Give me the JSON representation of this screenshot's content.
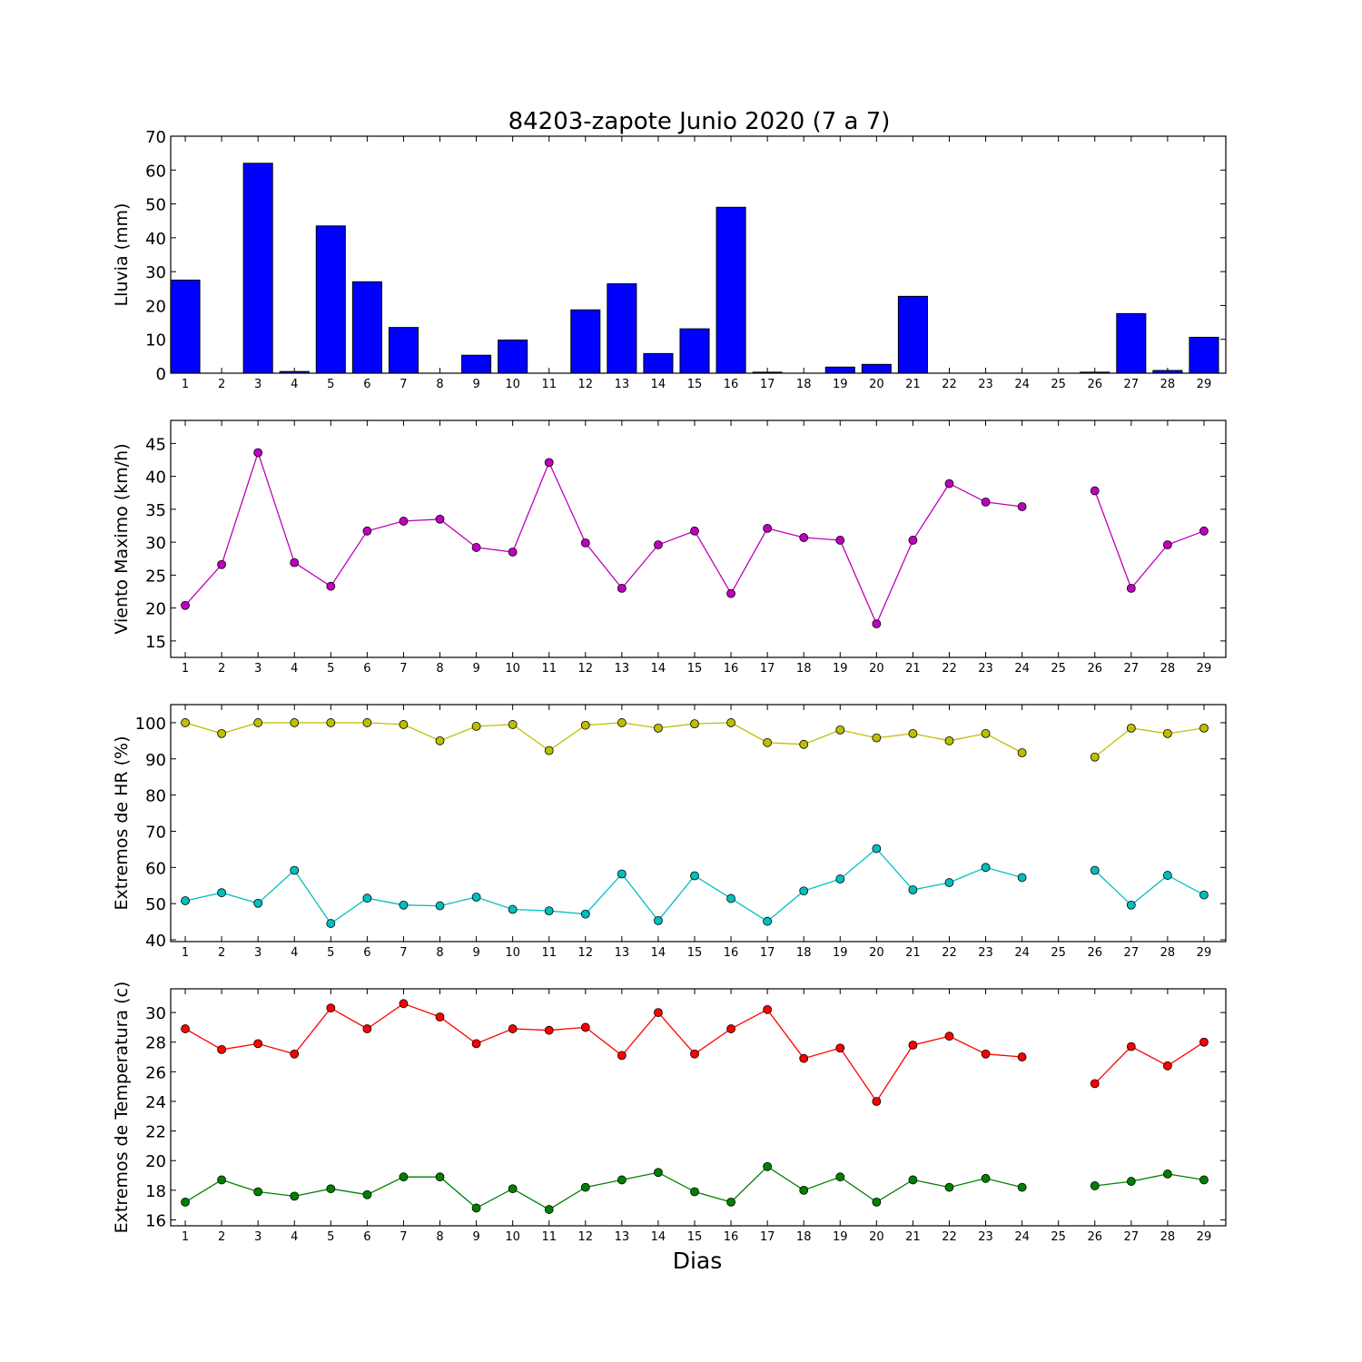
{
  "chart_data": {
    "title": "84203-zapote Junio 2020  (7 a 7)",
    "xlabel": "Dias",
    "days": [
      1,
      2,
      3,
      4,
      5,
      6,
      7,
      8,
      9,
      10,
      11,
      12,
      13,
      14,
      15,
      16,
      17,
      18,
      19,
      20,
      21,
      22,
      23,
      24,
      25,
      26,
      27,
      28,
      29
    ],
    "panels": [
      {
        "type": "bar",
        "ylabel": "Lluvia (mm)",
        "ylim": [
          0,
          70
        ],
        "yticks": [
          0,
          10,
          20,
          30,
          40,
          50,
          60,
          70
        ],
        "series": [
          {
            "color": "#0000ff",
            "values": [
              27.5,
              0,
              62,
              0.5,
              43.5,
              27,
              13.5,
              0,
              5.3,
              9.8,
              0,
              18.7,
              26.4,
              5.8,
              13.1,
              49,
              0.3,
              0,
              1.8,
              2.6,
              22.7,
              0,
              0,
              0,
              0,
              0.3,
              17.6,
              0.8,
              10.6
            ]
          }
        ]
      },
      {
        "type": "line",
        "ylabel": "Viento Maximo (km/h)",
        "ylim": [
          12.5,
          48.5
        ],
        "yticks": [
          15,
          20,
          25,
          30,
          35,
          40,
          45
        ],
        "series": [
          {
            "color": "#bf00bf",
            "values": [
              20.4,
              26.6,
              43.6,
              26.9,
              23.3,
              31.7,
              33.2,
              33.5,
              29.2,
              28.5,
              42.1,
              29.9,
              23.0,
              29.6,
              31.7,
              22.2,
              32.1,
              30.7,
              30.3,
              17.6,
              30.3,
              38.9,
              36.1,
              35.4,
              null,
              37.8,
              23.0,
              29.6,
              31.7
            ]
          }
        ]
      },
      {
        "type": "line",
        "ylabel": "Extremos de HR (%)",
        "ylim": [
          39.5,
          105
        ],
        "yticks": [
          40,
          50,
          60,
          70,
          80,
          90,
          100
        ],
        "series": [
          {
            "color": "#bfbf00",
            "values": [
              100,
              97,
              100,
              100,
              100,
              100,
              99.5,
              95,
              99,
              99.5,
              92.3,
              99.3,
              100,
              98.5,
              99.7,
              100,
              94.5,
              94,
              98,
              95.8,
              97,
              95,
              97,
              91.7,
              null,
              90.5,
              98.5,
              97,
              98.5
            ]
          },
          {
            "color": "#00bfbf",
            "values": [
              50.8,
              53,
              50.1,
              59.2,
              44.5,
              51.5,
              49.6,
              49.4,
              51.8,
              48.4,
              48,
              47.1,
              58.2,
              45.3,
              57.7,
              51.4,
              45.1,
              53.5,
              56.8,
              65.2,
              53.8,
              55.8,
              60,
              57.2,
              null,
              59.2,
              49.6,
              57.8,
              52.4
            ]
          }
        ]
      },
      {
        "type": "line",
        "ylabel": "Extremos de Temperatura (c)",
        "ylim": [
          15.6,
          31.6
        ],
        "yticks": [
          16,
          18,
          20,
          22,
          24,
          26,
          28,
          30
        ],
        "series": [
          {
            "color": "#ff0000",
            "values": [
              28.9,
              27.5,
              27.9,
              27.2,
              30.3,
              28.9,
              30.6,
              29.7,
              27.9,
              28.9,
              28.8,
              29.0,
              27.1,
              30.0,
              27.2,
              28.9,
              30.2,
              26.9,
              27.6,
              24.0,
              27.8,
              28.4,
              27.2,
              27.0,
              null,
              25.2,
              27.7,
              26.4,
              28.0
            ]
          },
          {
            "color": "#008000",
            "values": [
              17.2,
              18.7,
              17.9,
              17.6,
              18.1,
              17.7,
              18.9,
              18.9,
              16.8,
              18.1,
              16.7,
              18.2,
              18.7,
              19.2,
              17.9,
              17.2,
              19.6,
              18.0,
              18.9,
              17.2,
              18.7,
              18.2,
              18.8,
              18.2,
              null,
              18.3,
              18.6,
              19.1,
              18.7
            ]
          }
        ]
      }
    ]
  }
}
